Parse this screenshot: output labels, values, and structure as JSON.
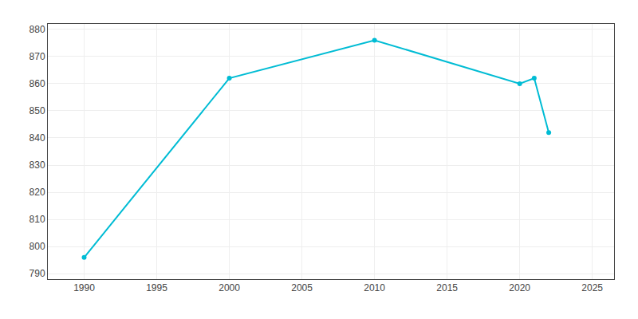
{
  "chart_data": {
    "type": "line",
    "x": [
      1990,
      2000,
      2010,
      2020,
      2021,
      2022
    ],
    "values": [
      796,
      862,
      876,
      860,
      862,
      842
    ],
    "color": "#00bcd4",
    "marker": "circle",
    "line_style": "solid",
    "xlim": [
      1987.5,
      2026.5
    ],
    "xticks": [
      1990,
      1995,
      2000,
      2005,
      2010,
      2015,
      2020,
      2025
    ],
    "ylim": [
      788,
      882
    ],
    "yticks": [
      790,
      800,
      810,
      820,
      830,
      840,
      850,
      860,
      870,
      880
    ],
    "grid": true
  }
}
